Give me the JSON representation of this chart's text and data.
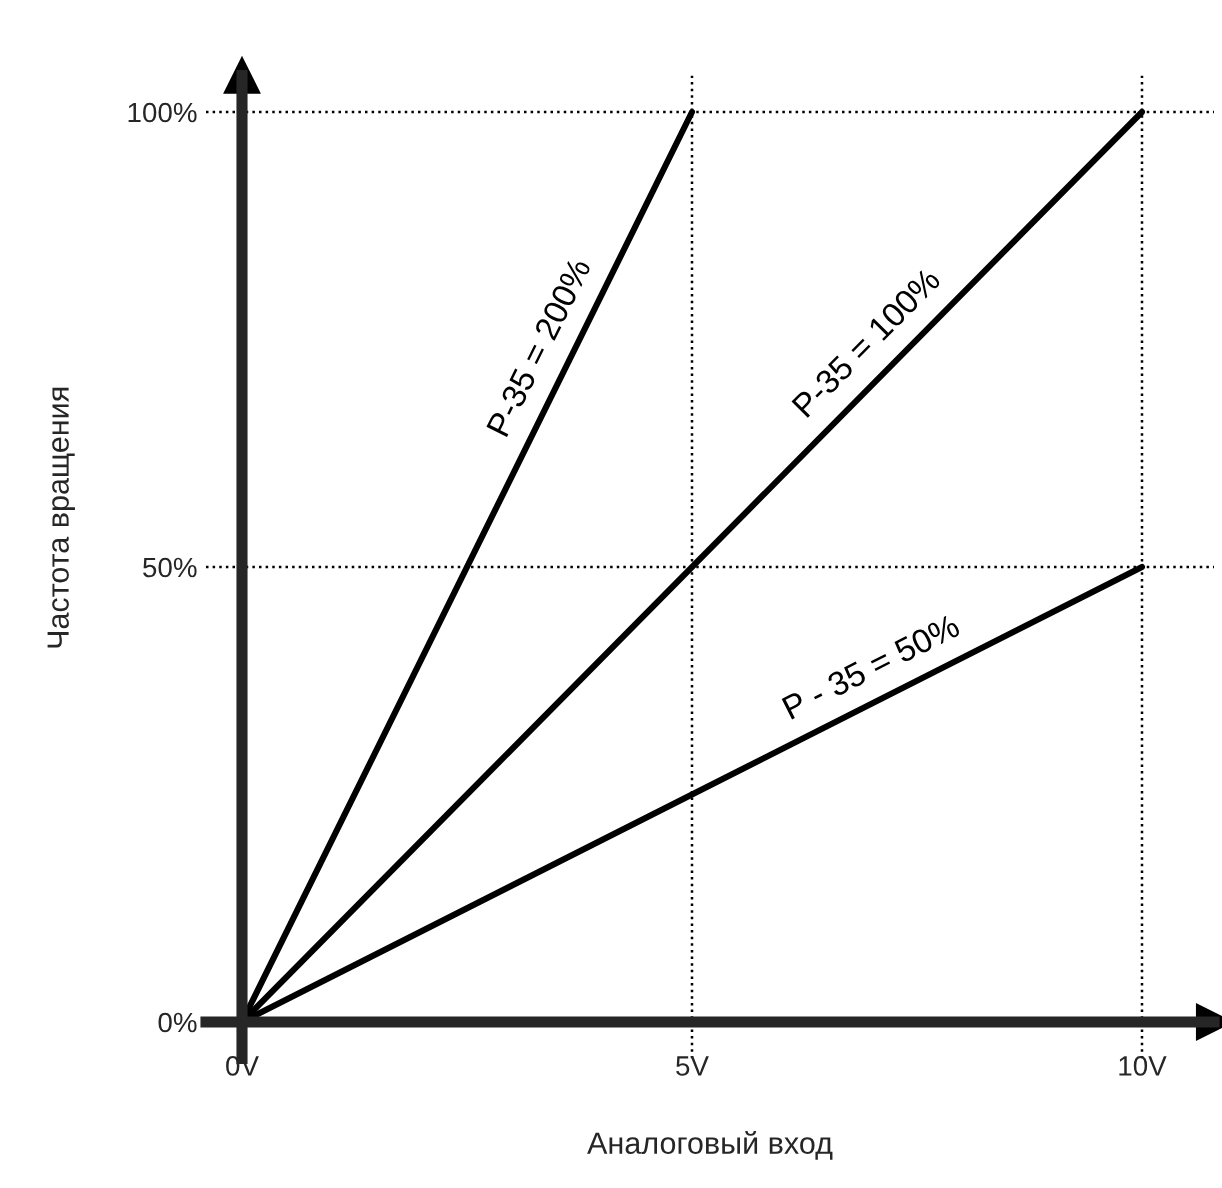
{
  "chart_data": {
    "type": "line",
    "xlabel": "Аналоговый вход",
    "ylabel": "Частота вращения",
    "xlim": [
      -0.4,
      10.8
    ],
    "ylim": [
      -4,
      104
    ],
    "xticks": [
      {
        "value": 0,
        "label": "0V"
      },
      {
        "value": 5,
        "label": "5V"
      },
      {
        "value": 10,
        "label": "10V"
      }
    ],
    "yticks": [
      {
        "value": 0,
        "label": "0%"
      },
      {
        "value": 50,
        "label": "50%"
      },
      {
        "value": 100,
        "label": "100%"
      }
    ],
    "grid": true,
    "legend": false,
    "line_style": "solid",
    "marker": "none",
    "series": [
      {
        "name": "P-35 = 200%",
        "color": "#000000",
        "x": [
          0,
          5
        ],
        "values": [
          0,
          100
        ]
      },
      {
        "name": "P-35 = 100%",
        "color": "#000000",
        "x": [
          0,
          10
        ],
        "values": [
          0,
          100
        ]
      },
      {
        "name": "P - 35 = 50%",
        "color": "#000000",
        "x": [
          0,
          10
        ],
        "values": [
          0,
          50
        ]
      }
    ]
  }
}
